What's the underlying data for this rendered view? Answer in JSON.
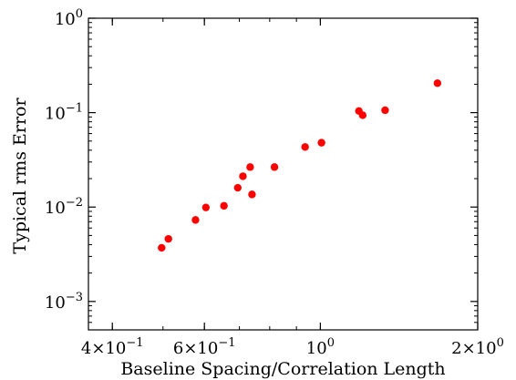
{
  "chart_data": {
    "type": "scatter",
    "title": "",
    "xlabel": "Baseline Spacing/Correlation Length",
    "ylabel": "Typical rms Error",
    "x_scale": "log",
    "y_scale": "log",
    "xlim": [
      0.36,
      2.0
    ],
    "ylim": [
      0.0005,
      1.0
    ],
    "x_ticks": [
      {
        "value": 0.4,
        "mantissa": "4",
        "exp": "−1"
      },
      {
        "value": 0.6,
        "mantissa": "6",
        "exp": "−1"
      },
      {
        "value": 1.0,
        "mantissa": "",
        "exp": "0"
      },
      {
        "value": 2.0,
        "mantissa": "2",
        "exp": "0"
      }
    ],
    "y_ticks": [
      {
        "value": 1.0,
        "exp": "0"
      },
      {
        "value": 0.1,
        "exp": "−1"
      },
      {
        "value": 0.01,
        "exp": "−2"
      },
      {
        "value": 0.001,
        "exp": "−3"
      }
    ],
    "grid": false,
    "marker_color": "#ff0000",
    "points": [
      {
        "x": 0.497,
        "y": 0.0037
      },
      {
        "x": 0.512,
        "y": 0.0046
      },
      {
        "x": 0.577,
        "y": 0.0073
      },
      {
        "x": 0.604,
        "y": 0.0099
      },
      {
        "x": 0.654,
        "y": 0.0103
      },
      {
        "x": 0.695,
        "y": 0.016
      },
      {
        "x": 0.711,
        "y": 0.0212
      },
      {
        "x": 0.734,
        "y": 0.0265
      },
      {
        "x": 0.74,
        "y": 0.0136
      },
      {
        "x": 0.817,
        "y": 0.0265
      },
      {
        "x": 0.935,
        "y": 0.0433
      },
      {
        "x": 1.005,
        "y": 0.048
      },
      {
        "x": 1.185,
        "y": 0.104
      },
      {
        "x": 1.205,
        "y": 0.094
      },
      {
        "x": 1.33,
        "y": 0.106
      },
      {
        "x": 1.675,
        "y": 0.205
      }
    ]
  }
}
